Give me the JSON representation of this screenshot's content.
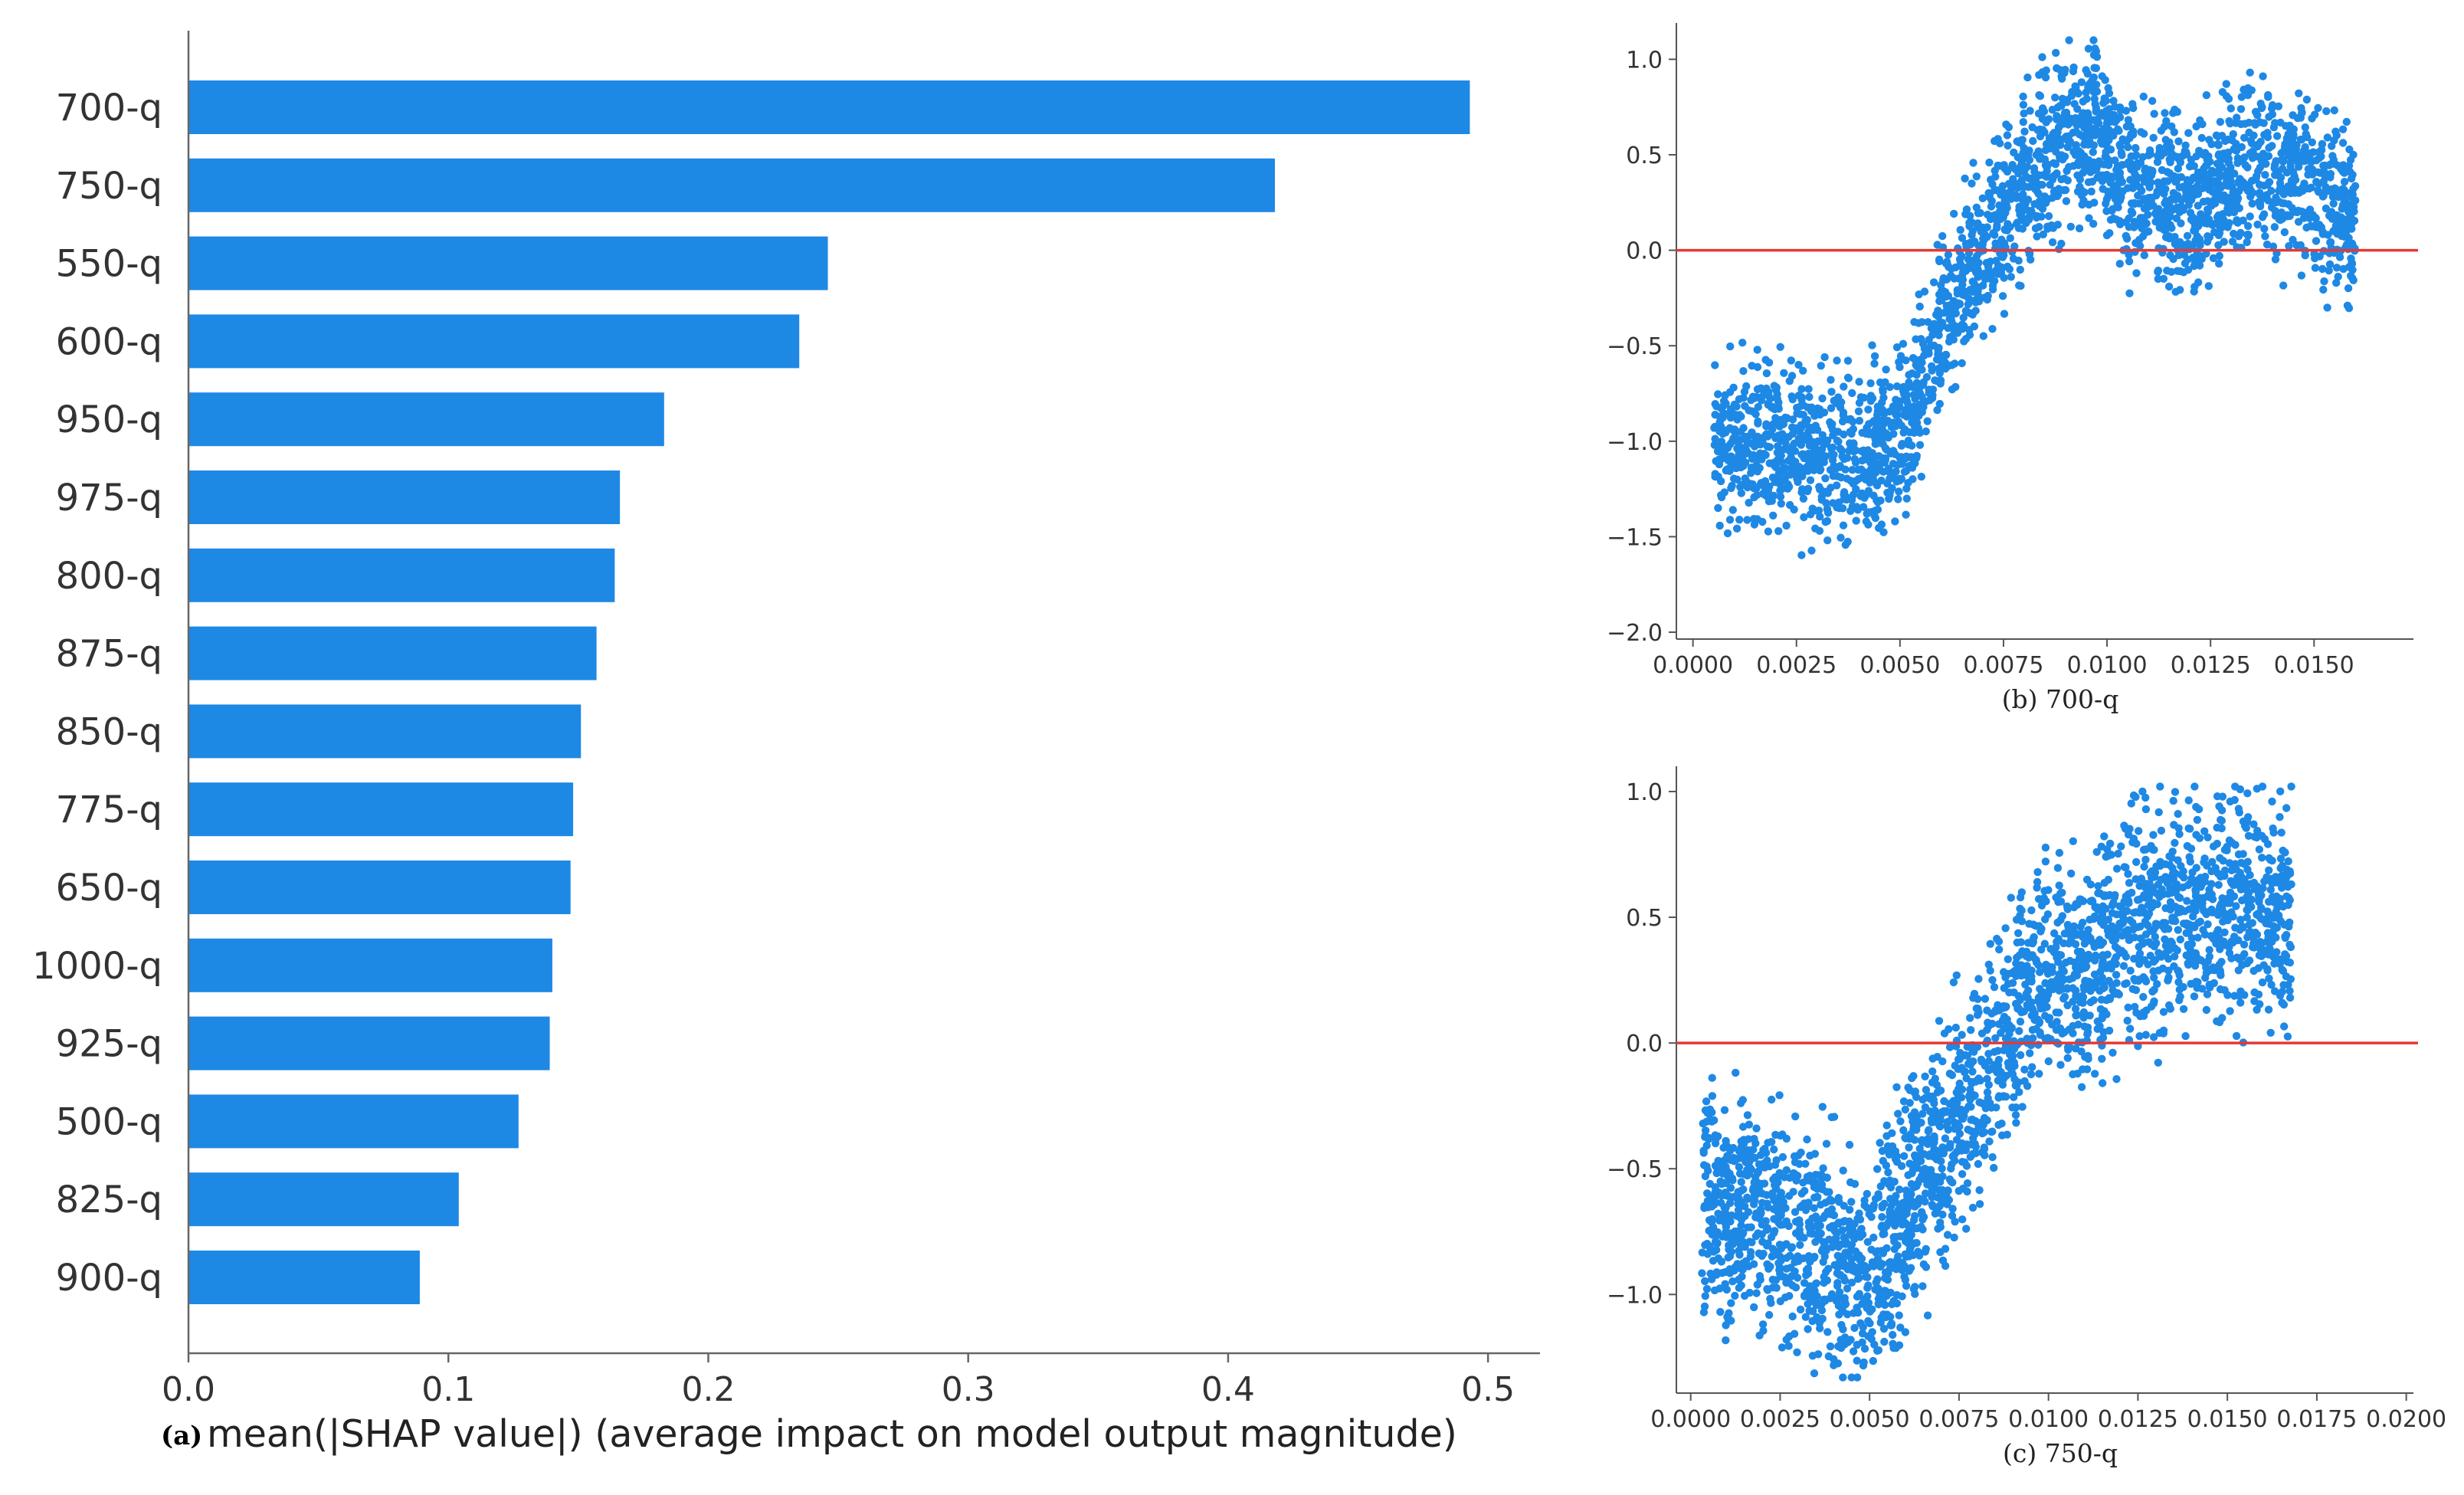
{
  "chart_data": [
    {
      "id": "a",
      "type": "bar",
      "orientation": "horizontal",
      "caption_tag": "(a)",
      "xlabel": "mean(|SHAP value|) (average impact on model output magnitude)",
      "categories": [
        "700-q",
        "750-q",
        "550-q",
        "600-q",
        "950-q",
        "975-q",
        "800-q",
        "875-q",
        "850-q",
        "775-q",
        "650-q",
        "1000-q",
        "925-q",
        "500-q",
        "825-q",
        "900-q"
      ],
      "values": [
        0.493,
        0.418,
        0.246,
        0.235,
        0.183,
        0.166,
        0.164,
        0.157,
        0.151,
        0.148,
        0.147,
        0.14,
        0.139,
        0.127,
        0.104,
        0.089
      ],
      "xlim": [
        0,
        0.52
      ],
      "xticks": [
        0.0,
        0.1,
        0.2,
        0.3,
        0.4,
        0.5
      ],
      "xtick_labels": [
        "0.0",
        "0.1",
        "0.2",
        "0.3",
        "0.4",
        "0.5"
      ],
      "color": "#1e88e5"
    },
    {
      "id": "b",
      "type": "scatter",
      "caption": "(b) 700-q",
      "xlim": [
        -0.0004,
        0.0174
      ],
      "ylim": [
        -2.02,
        1.15
      ],
      "xticks": [
        0.0,
        0.0025,
        0.005,
        0.0075,
        0.01,
        0.0125,
        0.015
      ],
      "xtick_labels": [
        "0.0000",
        "0.0025",
        "0.0050",
        "0.0075",
        "0.0100",
        "0.0125",
        "0.0150"
      ],
      "yticks": [
        1.0,
        0.5,
        0.0,
        -0.5,
        -1.0,
        -1.5,
        -2.0
      ],
      "ytick_labels": [
        "1.0",
        "0.5",
        "0.0",
        "−0.5",
        "−1.0",
        "−1.5",
        "−2.0"
      ],
      "reference_line_y": 0.0,
      "point_color": "#1e88e5",
      "line_color": "#e53935",
      "trend_x": [
        0.0005,
        0.002,
        0.004,
        0.005,
        0.0058,
        0.0065,
        0.0073,
        0.0082,
        0.009,
        0.0097,
        0.0105,
        0.0115,
        0.0125,
        0.0135,
        0.015,
        0.016
      ],
      "trend_y": [
        -1.0,
        -1.02,
        -1.12,
        -0.95,
        -0.55,
        -0.15,
        0.1,
        0.42,
        0.55,
        0.62,
        0.35,
        0.22,
        0.3,
        0.45,
        0.35,
        0.15
      ],
      "sample_count": 2600
    },
    {
      "id": "c",
      "type": "scatter",
      "caption": "(c) 750-q",
      "xlim": [
        -0.0004,
        0.0202
      ],
      "ylim": [
        -1.38,
        1.07
      ],
      "xticks": [
        0.0,
        0.0025,
        0.005,
        0.0075,
        0.01,
        0.0125,
        0.015,
        0.0175,
        0.02
      ],
      "xtick_labels": [
        "0.0000",
        "0.0025",
        "0.0050",
        "0.0075",
        "0.0100",
        "0.0125",
        "0.0150",
        "0.0175",
        "0.0200"
      ],
      "yticks": [
        1.0,
        0.5,
        0.0,
        -0.5,
        -1.0
      ],
      "ytick_labels": [
        "1.0",
        "0.5",
        "0.0",
        "−0.5",
        "−1.0"
      ],
      "reference_line_y": 0.0,
      "point_color": "#1e88e5",
      "line_color": "#e53935",
      "trend_x": [
        0.0003,
        0.002,
        0.004,
        0.005,
        0.0062,
        0.0075,
        0.0085,
        0.0092,
        0.0098,
        0.0108,
        0.012,
        0.0135,
        0.015,
        0.0168
      ],
      "trend_y": [
        -0.62,
        -0.72,
        -0.85,
        -0.95,
        -0.6,
        -0.3,
        -0.05,
        0.15,
        0.35,
        0.25,
        0.45,
        0.5,
        0.55,
        0.5
      ],
      "sample_count": 2600
    }
  ]
}
